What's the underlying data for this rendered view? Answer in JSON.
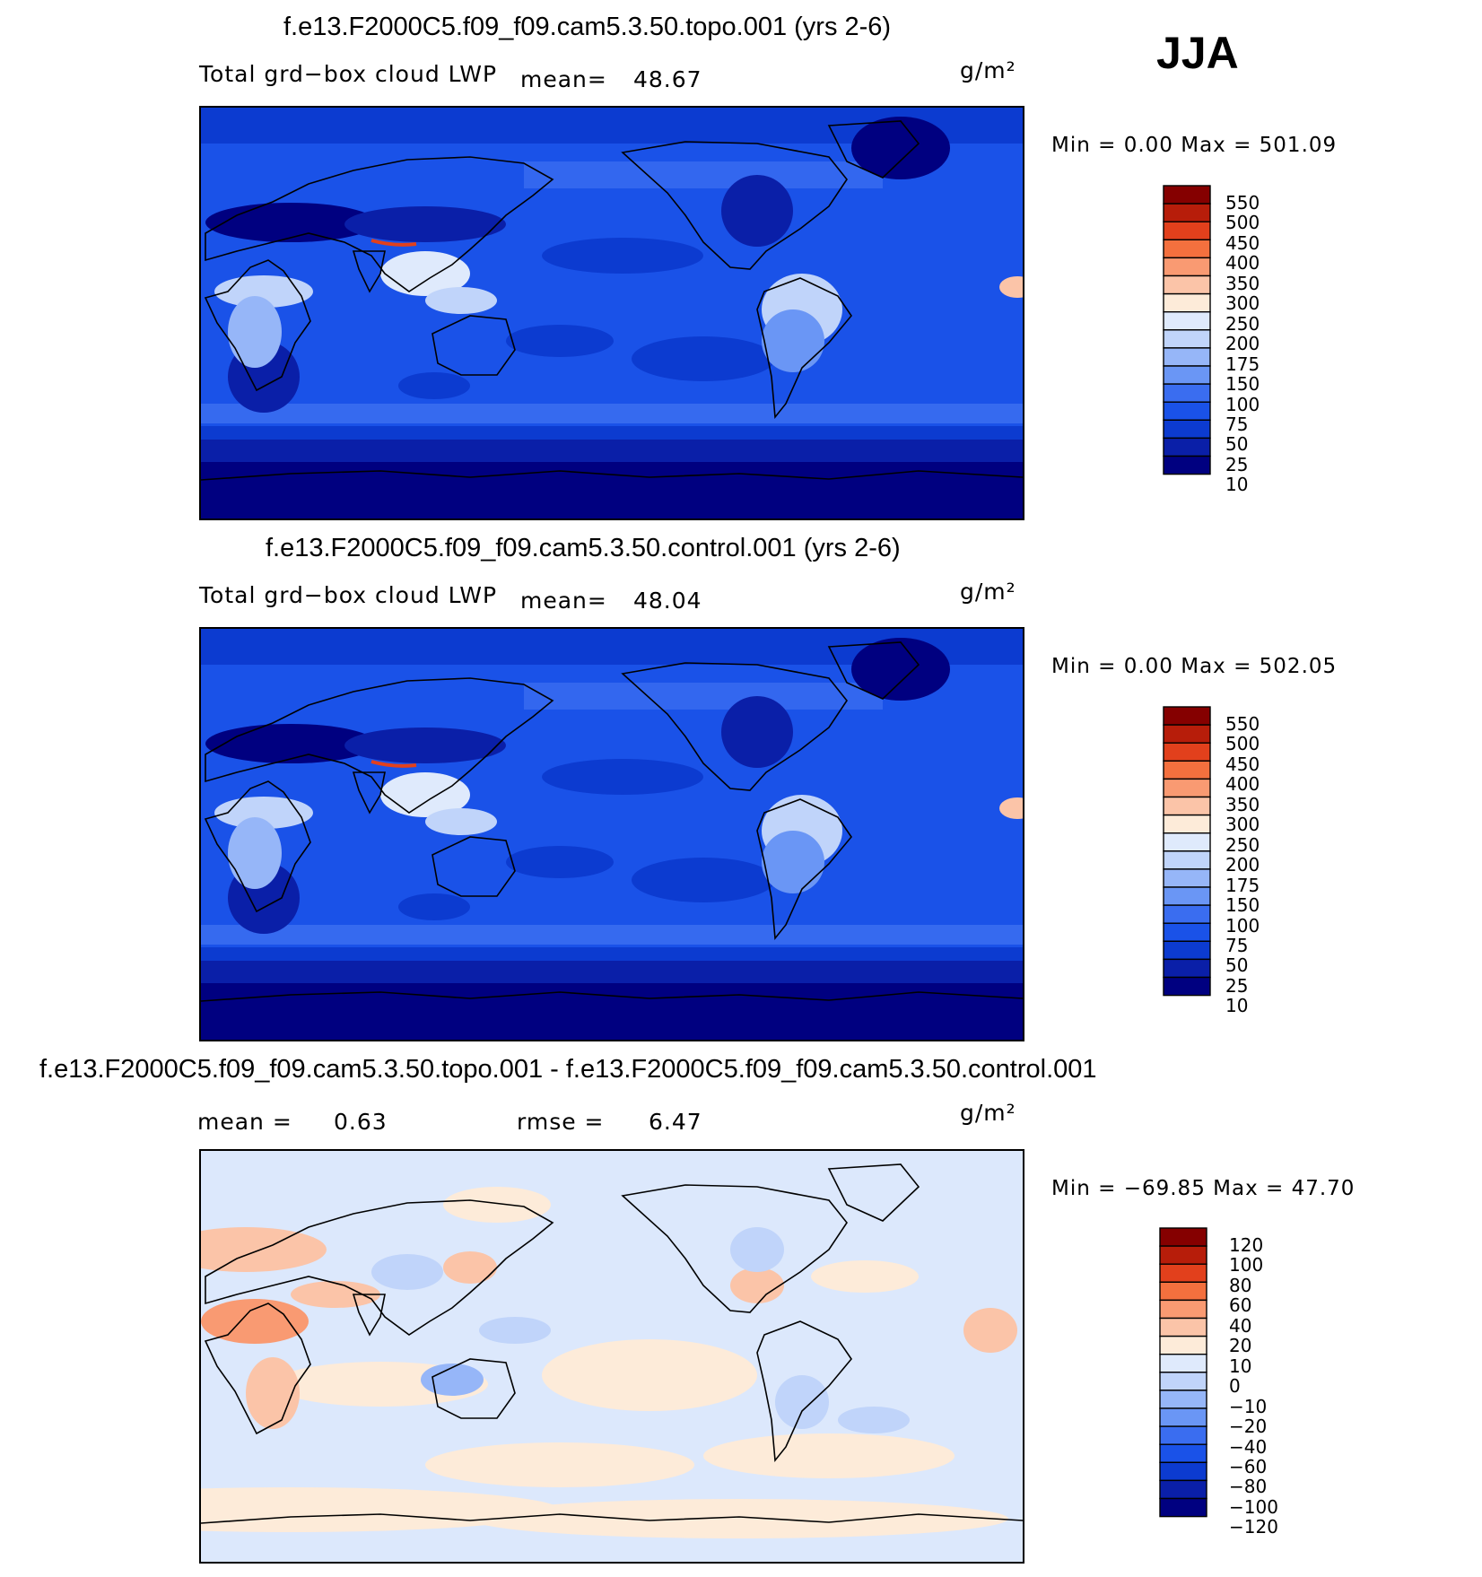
{
  "season": "JJA",
  "panels": [
    {
      "title": "f.e13.F2000C5.f09_f09.cam5.3.50.topo.001 (yrs 2-6)",
      "variable": "Total grd−box cloud LWP",
      "mean_label": "mean=",
      "mean_value": "48.67",
      "units": "g/m²",
      "min_max": "Min  =     0.00  Max  =  501.09",
      "map_name": "topo-map",
      "palette": "abs",
      "colorbar_labels": [
        "550",
        "500",
        "450",
        "400",
        "350",
        "300",
        "250",
        "200",
        "175",
        "150",
        "100",
        "75",
        "50",
        "25",
        "10"
      ]
    },
    {
      "title": "f.e13.F2000C5.f09_f09.cam5.3.50.control.001 (yrs 2-6)",
      "variable": "Total grd−box cloud LWP",
      "mean_label": "mean=",
      "mean_value": "48.04",
      "units": "g/m²",
      "min_max": "Min  =     0.00  Max  =  502.05",
      "map_name": "control-map",
      "palette": "abs",
      "colorbar_labels": [
        "550",
        "500",
        "450",
        "400",
        "350",
        "300",
        "250",
        "200",
        "175",
        "150",
        "100",
        "75",
        "50",
        "25",
        "10"
      ]
    },
    {
      "title": "f.e13.F2000C5.f09_f09.cam5.3.50.topo.001 - f.e13.F2000C5.f09_f09.cam5.3.50.control.001",
      "mean_label": "mean  =",
      "mean_value": "0.63",
      "rmse_label": "rmse  =",
      "rmse_value": "6.47",
      "units": "g/m²",
      "min_max": "Min  =  −69.85  Max  =    47.70",
      "map_name": "difference-map",
      "palette": "diff",
      "colorbar_labels": [
        "120",
        "100",
        "80",
        "60",
        "40",
        "20",
        "10",
        "0",
        "−10",
        "−20",
        "−40",
        "−60",
        "−80",
        "−100",
        "−120"
      ]
    }
  ],
  "colors": {
    "abs_levels": [
      "#000080",
      "#0a1fa8",
      "#0c3bd0",
      "#1a52e8",
      "#3a6df0",
      "#6a96f5",
      "#96b6f8",
      "#c0d4fa",
      "#dfeafc",
      "#fdebd9",
      "#fbc4a8",
      "#f99a72",
      "#f4703e",
      "#e2401c",
      "#b71d0a",
      "#850000"
    ],
    "diff_levels": [
      "#000080",
      "#0a1fa8",
      "#0c3bd0",
      "#1a52e8",
      "#3a6df0",
      "#6a96f5",
      "#96b6f8",
      "#c0d4fa",
      "#dfeafc",
      "#fdebd9",
      "#fbc4a8",
      "#f99a72",
      "#f4703e",
      "#e2401c",
      "#b71d0a",
      "#850000"
    ],
    "ocean_base": "#1a3fd6",
    "diff_base": "#dce8fc"
  }
}
